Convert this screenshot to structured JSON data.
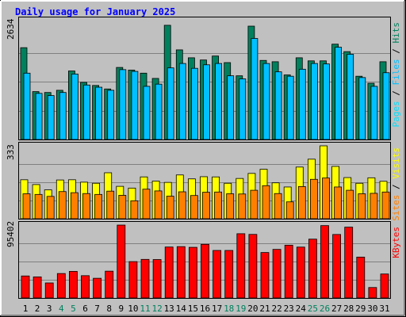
{
  "title": "Daily usage for January 2025",
  "colors": {
    "background": "#c0c0c0",
    "panel": "#c0c0c0",
    "title": "#0000ff",
    "hits": "#00805c",
    "files": "#00c0ff",
    "pages": "#00e0ff",
    "visits": "#ffff00",
    "sites": "#ff8000",
    "kbytes": "#ff0000",
    "weekend_day": "#00805c",
    "weekday": "#000000"
  },
  "chart_data": [
    {
      "type": "bar",
      "panel": "hits",
      "ytick_label": "2634",
      "ylim": [
        0,
        2634
      ],
      "legend": [
        "Pages",
        "Files",
        "Hits"
      ],
      "categories": [
        "1",
        "2",
        "3",
        "4",
        "5",
        "6",
        "7",
        "8",
        "9",
        "10",
        "11",
        "12",
        "13",
        "14",
        "15",
        "16",
        "17",
        "18",
        "19",
        "20",
        "21",
        "22",
        "23",
        "24",
        "25",
        "26",
        "27",
        "28",
        "29",
        "30",
        "31"
      ],
      "series": [
        {
          "name": "Hits",
          "values": [
            2090,
            1090,
            1070,
            1120,
            1560,
            1300,
            1230,
            1150,
            1640,
            1580,
            1510,
            1390,
            2600,
            2040,
            1860,
            1810,
            1900,
            1750,
            1450,
            2580,
            1800,
            1770,
            1470,
            1860,
            1790,
            1790,
            2170,
            2000,
            1440,
            1280,
            1770
          ]
        },
        {
          "name": "Files",
          "values": [
            1510,
            1050,
            1000,
            1070,
            1490,
            1240,
            1190,
            1120,
            1590,
            1550,
            1210,
            1260,
            1630,
            1730,
            1620,
            1700,
            1730,
            1450,
            1380,
            2300,
            1730,
            1540,
            1440,
            1600,
            1730,
            1720,
            2100,
            1940,
            1410,
            1210,
            1520
          ]
        },
        {
          "name": "Pages",
          "values": [
            1510,
            1050,
            1000,
            1070,
            1490,
            1240,
            1190,
            1120,
            1590,
            1550,
            1210,
            1260,
            1630,
            1730,
            1620,
            1700,
            1730,
            1450,
            1380,
            2300,
            1730,
            1540,
            1440,
            1600,
            1730,
            1720,
            2100,
            1940,
            1410,
            1210,
            1520
          ]
        }
      ]
    },
    {
      "type": "bar",
      "panel": "visits",
      "ytick_label": "333",
      "ylim": [
        0,
        333
      ],
      "legend": [
        "Sites",
        "Visits"
      ],
      "categories": [
        "1",
        "2",
        "3",
        "4",
        "5",
        "6",
        "7",
        "8",
        "9",
        "10",
        "11",
        "12",
        "13",
        "14",
        "15",
        "16",
        "17",
        "18",
        "19",
        "20",
        "21",
        "22",
        "23",
        "24",
        "25",
        "26",
        "27",
        "28",
        "29",
        "30",
        "31"
      ],
      "series": [
        {
          "name": "Visits",
          "values": [
            178,
            156,
            132,
            177,
            178,
            167,
            162,
            210,
            148,
            140,
            191,
            172,
            166,
            200,
            182,
            192,
            191,
            162,
            184,
            207,
            226,
            164,
            145,
            236,
            272,
            333,
            239,
            188,
            162,
            187,
            171
          ]
        },
        {
          "name": "Sites",
          "values": [
            114,
            111,
            102,
            124,
            119,
            115,
            111,
            126,
            107,
            82,
            135,
            127,
            103,
            123,
            106,
            121,
            122,
            114,
            113,
            130,
            151,
            115,
            77,
            147,
            180,
            186,
            145,
            130,
            114,
            116,
            122
          ]
        }
      ]
    },
    {
      "type": "bar",
      "panel": "kbytes",
      "ytick_label": "95402",
      "ylim": [
        0,
        95402
      ],
      "legend": [
        "KBytes"
      ],
      "categories": [
        "1",
        "2",
        "3",
        "4",
        "5",
        "6",
        "7",
        "8",
        "9",
        "10",
        "11",
        "12",
        "13",
        "14",
        "15",
        "16",
        "17",
        "18",
        "19",
        "20",
        "21",
        "22",
        "23",
        "24",
        "25",
        "26",
        "27",
        "28",
        "29",
        "30",
        "31"
      ],
      "series": [
        {
          "name": "KBytes",
          "values": [
            28800,
            27600,
            19700,
            32000,
            34800,
            29200,
            25800,
            35100,
            95400,
            47600,
            50500,
            50300,
            66700,
            67200,
            66300,
            70200,
            62200,
            62200,
            84100,
            83200,
            59500,
            63600,
            69100,
            66600,
            77000,
            94700,
            83100,
            92700,
            53500,
            13700,
            31400
          ]
        }
      ]
    }
  ],
  "x_labels": [
    "1",
    "2",
    "3",
    "4",
    "5",
    "6",
    "7",
    "8",
    "9",
    "10",
    "11",
    "12",
    "13",
    "14",
    "15",
    "16",
    "17",
    "18",
    "19",
    "20",
    "21",
    "22",
    "23",
    "24",
    "25",
    "26",
    "27",
    "28",
    "29",
    "30",
    "31"
  ],
  "weekend_days": [
    "4",
    "5",
    "11",
    "12",
    "18",
    "19",
    "25",
    "26"
  ]
}
